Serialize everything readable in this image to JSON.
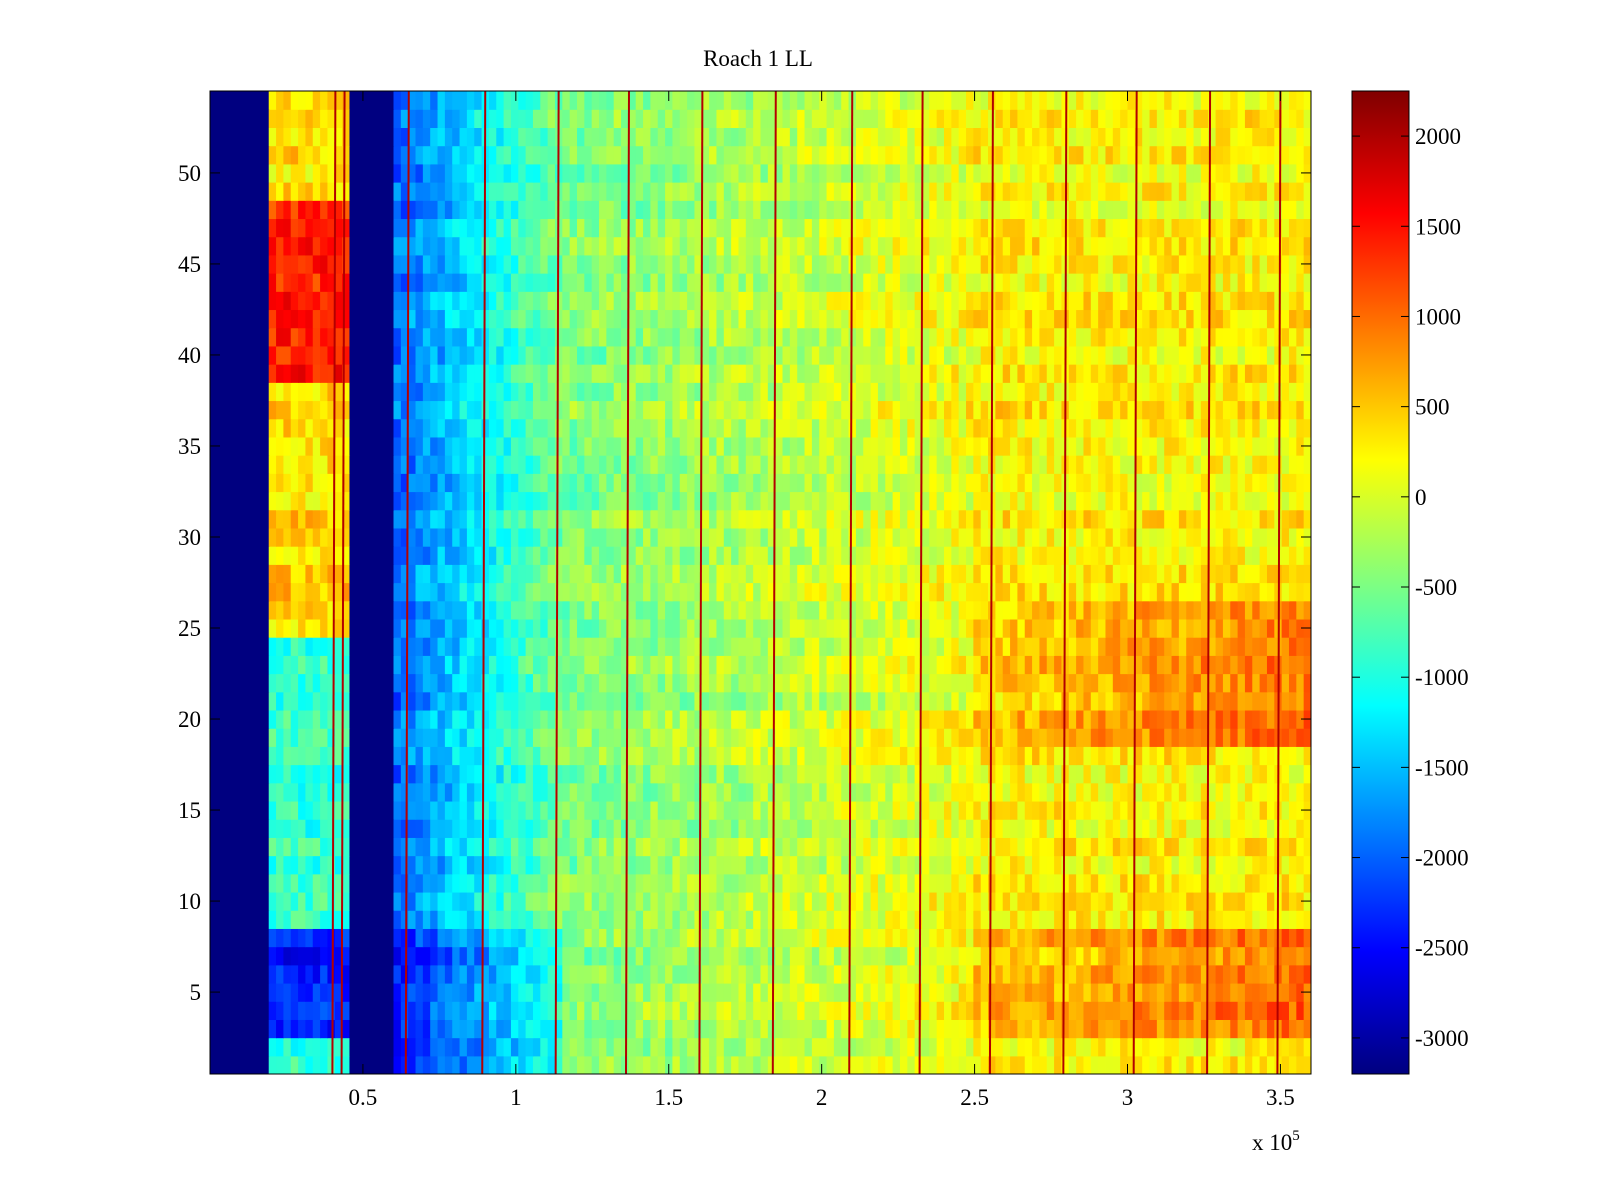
{
  "chart_data": {
    "type": "heatmap",
    "title": "Roach 1 LL",
    "xlabel": "",
    "ylabel": "",
    "x_multiplier_label": "x 10",
    "x_multiplier_exponent": "5",
    "xlim": [
      0,
      3.6
    ],
    "ylim": [
      0.5,
      54.5
    ],
    "x_ticks": [
      0.5,
      1,
      1.5,
      2,
      2.5,
      3,
      3.5
    ],
    "x_tick_labels": [
      "0.5",
      "1",
      "1.5",
      "2",
      "2.5",
      "3",
      "3.5"
    ],
    "y_ticks": [
      5,
      10,
      15,
      20,
      25,
      30,
      35,
      40,
      45,
      50
    ],
    "y_tick_labels": [
      "5",
      "10",
      "15",
      "20",
      "25",
      "30",
      "35",
      "40",
      "45",
      "50"
    ],
    "rows": 54,
    "colorbar": {
      "colormap": "jet",
      "range": [
        -3200,
        2250
      ],
      "ticks": [
        2000,
        1500,
        1000,
        500,
        0,
        -500,
        -1000,
        -1500,
        -2000,
        -2500,
        -3000
      ],
      "tick_labels": [
        "2000",
        "1500",
        "1000",
        "500",
        "0",
        "-500",
        "-1000",
        "-1500",
        "-2000",
        "-2500",
        "-3000"
      ]
    },
    "regions": [
      {
        "x": [
          0,
          0.19
        ],
        "value": -3200,
        "note": "no data / minimum"
      },
      {
        "x": [
          0.19,
          0.45
        ],
        "value": 800,
        "note": "warm band, hottest rows 39-48, cool rows 3-8"
      },
      {
        "x": [
          0.45,
          0.59
        ],
        "value": -3200,
        "note": "no data / minimum"
      },
      {
        "x": [
          0.59,
          1.15
        ],
        "value": -800,
        "note": "cool ramp from blue to cyan"
      },
      {
        "x": [
          1.15,
          2.5
        ],
        "value": 0,
        "note": "green-yellow"
      },
      {
        "x": [
          2.5,
          3.6
        ],
        "value": 400,
        "note": "yellow-orange, warmer at rows 3-8 and 19-26"
      }
    ],
    "vertical_lines_x": [
      0.41,
      0.44,
      0.65,
      0.9,
      1.14,
      1.37,
      1.61,
      1.85,
      2.1,
      2.33,
      2.56,
      2.8,
      3.03,
      3.27,
      3.5
    ]
  },
  "colors": {
    "axis": "#000000",
    "background": "#ffffff"
  }
}
